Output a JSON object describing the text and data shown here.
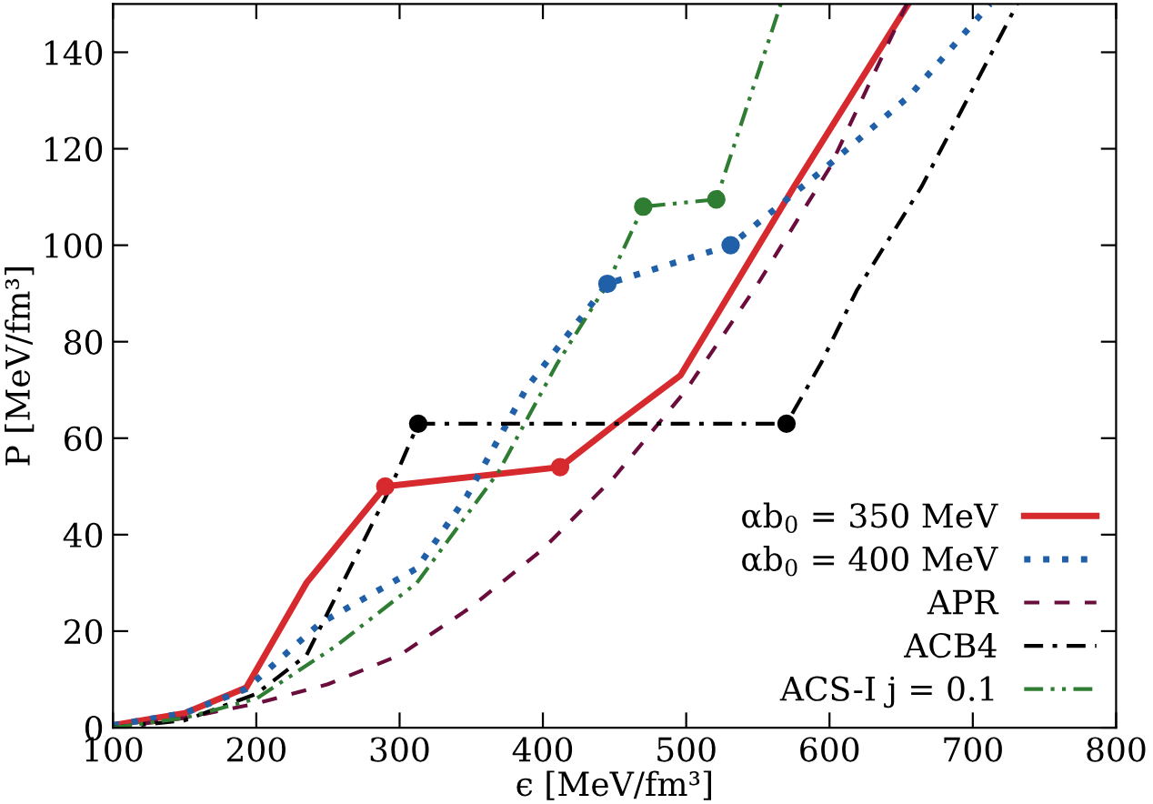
{
  "chart_data": {
    "type": "line",
    "xlabel": "ϵ [MeV/fm³]",
    "ylabel": "P [MeV/fm³]",
    "xlim": [
      100,
      800
    ],
    "ylim": [
      0,
      150
    ],
    "xticks": [
      100,
      200,
      300,
      400,
      500,
      600,
      700,
      800
    ],
    "yticks": [
      0,
      20,
      40,
      60,
      80,
      100,
      120,
      140
    ],
    "grid": false,
    "legend": "bottom right",
    "series": [
      {
        "name": "αb$_{0}$ = 350 MeV",
        "color": "#d62a2e",
        "line_style": "solid",
        "x": [
          100,
          150,
          193,
          235,
          290,
          412,
          451,
          496,
          575,
          655
        ],
        "values": [
          0.5,
          3,
          8.3,
          30,
          50,
          54,
          63,
          73,
          112,
          150
        ]
      },
      {
        "name": "αb$_{0}$ = 400 MeV",
        "color": "#2060a8",
        "line_style": "dotted",
        "x": [
          100,
          150,
          193,
          244,
          312,
          347,
          389,
          445,
          531,
          597,
          656,
          712
        ],
        "values": [
          0.5,
          3,
          8,
          21.5,
          33,
          48,
          70.6,
          92,
          100,
          116,
          131,
          150
        ]
      },
      {
        "name": "APR",
        "color": "#6b0d3c",
        "line_style": "dashed",
        "x": [
          100,
          150,
          200,
          250,
          300,
          350,
          400,
          450,
          500,
          550,
          600,
          654
        ],
        "values": [
          0,
          2,
          5,
          9,
          15,
          25,
          37,
          52,
          70,
          92,
          116,
          150
        ]
      },
      {
        "name": "ACB4",
        "color": "#000000",
        "line_style": "dashdot",
        "x": [
          100,
          150,
          200,
          235,
          294,
          313,
          570,
          594,
          619,
          664,
          731
        ],
        "values": [
          0,
          1.5,
          7,
          15,
          50,
          63,
          63,
          75.5,
          90.6,
          112,
          150
        ]
      },
      {
        "name": "ACS-I j = 0.1",
        "color": "#2e7d32",
        "line_style": "dashdotdot",
        "x": [
          100,
          150,
          200,
          256,
          312,
          369,
          410,
          445,
          470,
          521,
          566
        ],
        "values": [
          0,
          2,
          6,
          17,
          30,
          53,
          75.5,
          92,
          108,
          109.5,
          150
        ]
      },
      {
        "type": "scatter",
        "color": "#d62a2e",
        "marker": "circle",
        "x": [
          290,
          412
        ],
        "values": [
          50,
          54
        ]
      },
      {
        "type": "scatter",
        "color": "#2060a8",
        "marker": "circle",
        "x": [
          445,
          531
        ],
        "values": [
          92,
          100
        ]
      },
      {
        "type": "scatter",
        "color": "#000000",
        "marker": "circle",
        "x": [
          313,
          570
        ],
        "values": [
          63,
          63
        ]
      },
      {
        "type": "scatter",
        "color": "#2e7d32",
        "marker": "circle",
        "x": [
          470,
          521
        ],
        "values": [
          108,
          109.5
        ]
      }
    ]
  }
}
